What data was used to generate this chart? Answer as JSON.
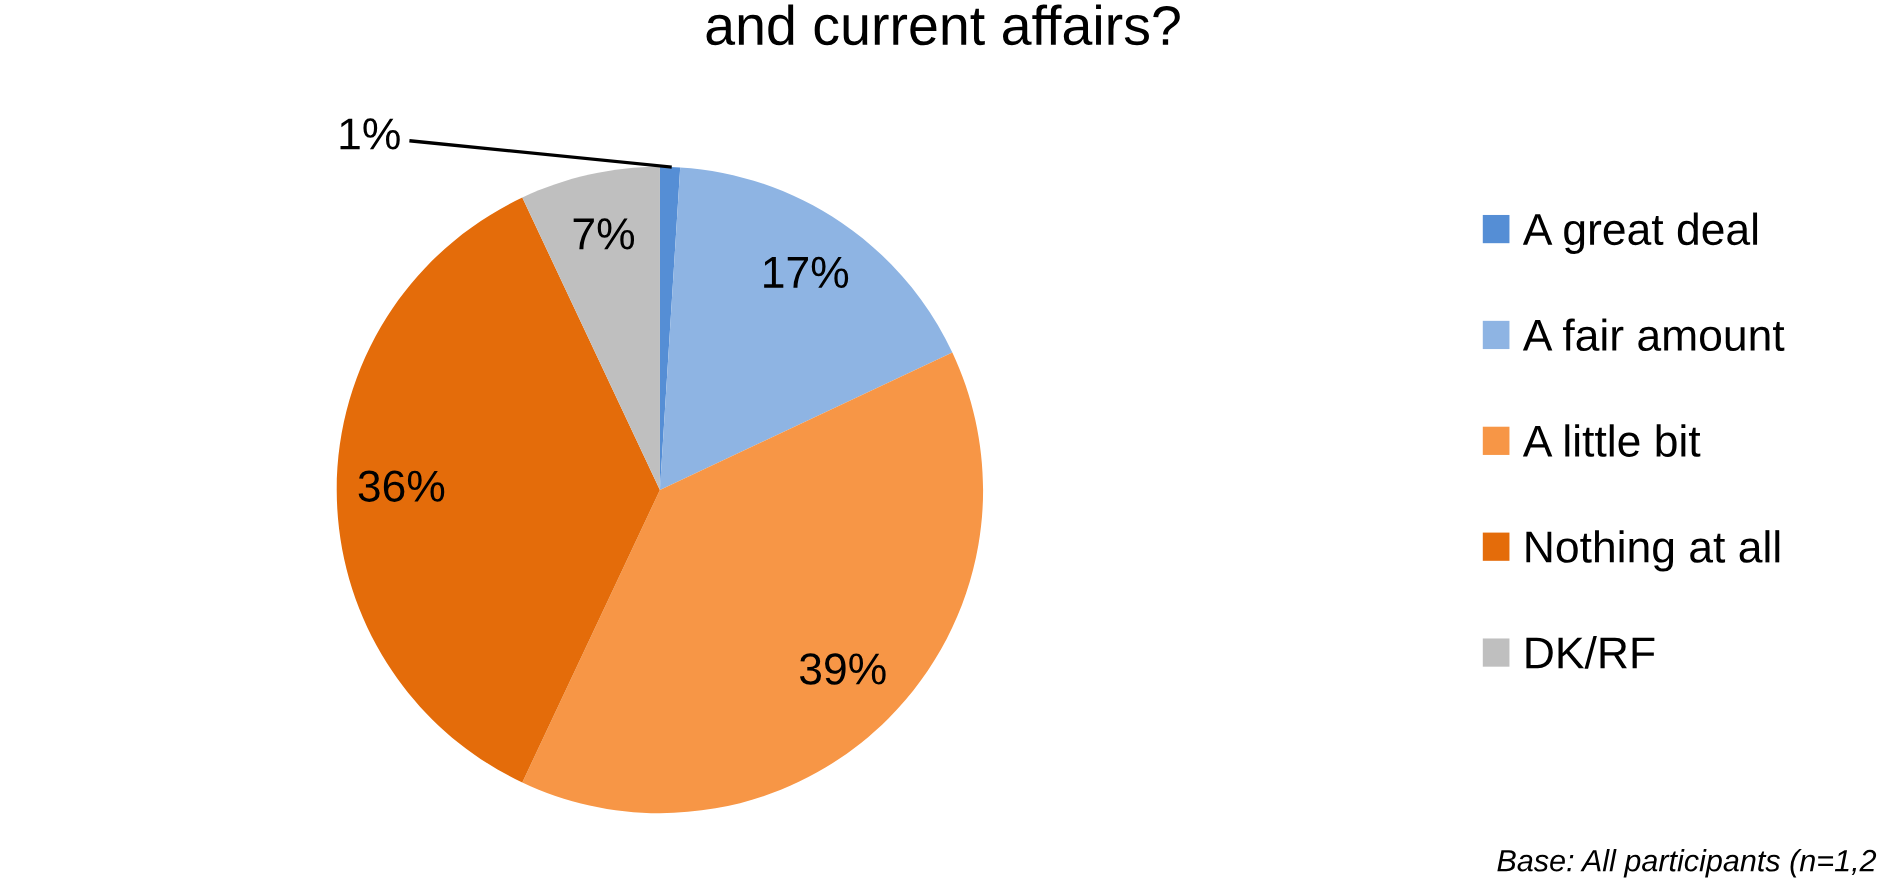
{
  "chart_data": {
    "type": "pie",
    "title": "and current affairs?",
    "categories": [
      "A great deal",
      "A fair amount",
      "A little bit",
      "Nothing at all",
      "DK/RF"
    ],
    "values": [
      1,
      17,
      39,
      36,
      7
    ],
    "colors": [
      "#558ed5",
      "#8eb4e3",
      "#f79646",
      "#e46c0a",
      "#bfbfbf"
    ],
    "value_labels": [
      "1%",
      "17%",
      "39%",
      "36%",
      "7%"
    ],
    "legend": "right",
    "annotations": [
      "Base: All participants (n=1,2"
    ]
  }
}
